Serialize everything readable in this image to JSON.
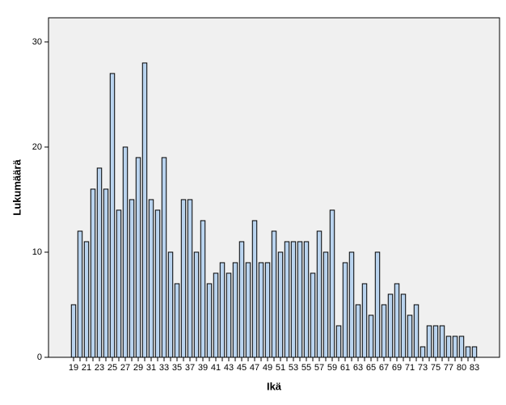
{
  "chart_data": {
    "type": "bar",
    "x_label": "Ikä",
    "y_label": "Lukumäärä",
    "categories": [
      "19",
      null,
      "21",
      null,
      "23",
      null,
      "25",
      null,
      "27",
      null,
      "29",
      null,
      "31",
      null,
      "33",
      null,
      "35",
      null,
      "37",
      null,
      "39",
      null,
      "41",
      null,
      "43",
      null,
      "45",
      null,
      "47",
      null,
      "49",
      null,
      "51",
      null,
      "53",
      null,
      "55",
      null,
      "57",
      null,
      "59",
      null,
      "61",
      null,
      "63",
      null,
      "65",
      null,
      "67",
      null,
      "69",
      null,
      "71",
      null,
      "73",
      null,
      "75",
      null,
      "77",
      null,
      "80",
      null,
      "83"
    ],
    "values": [
      5,
      12,
      11,
      16,
      18,
      16,
      27,
      14,
      20,
      15,
      19,
      28,
      15,
      14,
      19,
      10,
      7,
      15,
      15,
      10,
      13,
      7,
      8,
      9,
      8,
      9,
      11,
      9,
      13,
      9,
      9,
      12,
      10,
      11,
      11,
      11,
      11,
      8,
      12,
      10,
      14,
      3,
      9,
      10,
      5,
      7,
      4,
      10,
      5,
      6,
      7,
      6,
      4,
      5,
      1,
      3,
      3,
      3,
      2,
      2,
      2,
      1,
      1
    ],
    "color": "#b9d3ee",
    "ylim": [
      0,
      32.3
    ],
    "yticks": [
      0,
      10,
      20,
      30
    ]
  }
}
